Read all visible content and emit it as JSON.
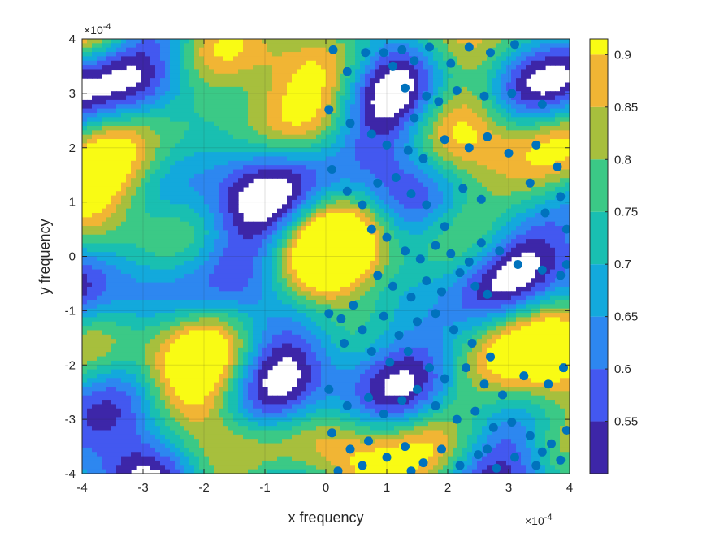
{
  "chart_data": {
    "type": "contourf-scatter",
    "xlabel": "x frequency",
    "ylabel": "y frequency",
    "x_exponent_label": "×10",
    "x_exponent_power": "-4",
    "y_exponent_label": "×10",
    "y_exponent_power": "-4",
    "xlim": [
      -4,
      4
    ],
    "ylim": [
      -4,
      4
    ],
    "x_ticks": [
      -4,
      -3,
      -2,
      -1,
      0,
      1,
      2,
      3,
      4
    ],
    "y_ticks": [
      -4,
      -3,
      -2,
      -1,
      0,
      1,
      2,
      3,
      4
    ],
    "x_tick_labels": [
      "-4",
      "-3",
      "-2",
      "-1",
      "0",
      "1",
      "2",
      "3",
      "4"
    ],
    "y_tick_labels": [
      "-4",
      "-3",
      "-2",
      "-1",
      "0",
      "1",
      "2",
      "3",
      "4"
    ],
    "grid": true,
    "colorbar": {
      "range": [
        0.5,
        0.915
      ],
      "ticks": [
        0.55,
        0.6,
        0.65,
        0.7,
        0.75,
        0.8,
        0.85,
        0.9
      ],
      "tick_labels": [
        "0.55",
        "0.6",
        "0.65",
        "0.7",
        "0.75",
        "0.8",
        "0.85",
        "0.9"
      ],
      "colormap": "parula"
    },
    "contour_levels": [
      0.5,
      0.55,
      0.6,
      0.65,
      0.7,
      0.75,
      0.8,
      0.85,
      0.9
    ],
    "level_colors": [
      "#3D26A8",
      "#4358F0",
      "#2D87F0",
      "#13A9DC",
      "#19BFB1",
      "#3BC986",
      "#A7BF3D",
      "#F1B534",
      "#F9FB14"
    ],
    "marker_color": "#0072BD",
    "scatter_points": [
      [
        0.12,
        3.8
      ],
      [
        0.35,
        3.4
      ],
      [
        0.65,
        3.75
      ],
      [
        0.95,
        3.75
      ],
      [
        1.1,
        3.5
      ],
      [
        1.25,
        3.8
      ],
      [
        1.45,
        3.6
      ],
      [
        1.7,
        3.85
      ],
      [
        2.05,
        3.55
      ],
      [
        2.35,
        3.85
      ],
      [
        2.7,
        3.75
      ],
      [
        3.1,
        3.9
      ],
      [
        1.3,
        3.1
      ],
      [
        1.65,
        2.95
      ],
      [
        1.45,
        2.55
      ],
      [
        1.85,
        2.85
      ],
      [
        2.15,
        3.05
      ],
      [
        2.6,
        2.95
      ],
      [
        3.05,
        3.0
      ],
      [
        3.55,
        2.8
      ],
      [
        0.05,
        2.7
      ],
      [
        0.4,
        2.45
      ],
      [
        0.75,
        2.25
      ],
      [
        1.0,
        2.05
      ],
      [
        1.35,
        1.95
      ],
      [
        1.6,
        1.8
      ],
      [
        1.95,
        2.15
      ],
      [
        2.35,
        2.0
      ],
      [
        2.65,
        2.2
      ],
      [
        3.0,
        1.9
      ],
      [
        3.45,
        2.05
      ],
      [
        3.8,
        1.65
      ],
      [
        0.1,
        1.6
      ],
      [
        0.35,
        1.2
      ],
      [
        0.6,
        0.95
      ],
      [
        0.85,
        1.35
      ],
      [
        1.15,
        1.45
      ],
      [
        1.4,
        1.15
      ],
      [
        1.65,
        0.95
      ],
      [
        1.95,
        0.55
      ],
      [
        2.25,
        1.25
      ],
      [
        2.55,
        1.05
      ],
      [
        3.35,
        1.35
      ],
      [
        3.6,
        0.8
      ],
      [
        3.85,
        1.1
      ],
      [
        3.95,
        0.5
      ],
      [
        0.75,
        0.5
      ],
      [
        1.0,
        0.35
      ],
      [
        1.3,
        0.1
      ],
      [
        1.55,
        -0.05
      ],
      [
        1.8,
        0.2
      ],
      [
        2.05,
        0.05
      ],
      [
        2.35,
        -0.1
      ],
      [
        2.55,
        0.25
      ],
      [
        2.85,
        0.1
      ],
      [
        3.15,
        -0.15
      ],
      [
        3.55,
        -0.25
      ],
      [
        3.85,
        -0.35
      ],
      [
        3.95,
        -0.15
      ],
      [
        0.85,
        -0.35
      ],
      [
        1.1,
        -0.55
      ],
      [
        1.4,
        -0.75
      ],
      [
        1.65,
        -0.45
      ],
      [
        1.9,
        -0.65
      ],
      [
        2.2,
        -0.3
      ],
      [
        2.45,
        -0.55
      ],
      [
        2.65,
        -0.7
      ],
      [
        0.45,
        -0.9
      ],
      [
        0.25,
        -1.15
      ],
      [
        0.05,
        -1.05
      ],
      [
        0.6,
        -1.35
      ],
      [
        0.95,
        -1.1
      ],
      [
        1.2,
        -1.45
      ],
      [
        1.5,
        -1.2
      ],
      [
        1.8,
        -1.05
      ],
      [
        2.1,
        -1.35
      ],
      [
        2.4,
        -1.6
      ],
      [
        2.7,
        -1.85
      ],
      [
        0.3,
        -1.6
      ],
      [
        0.75,
        -1.75
      ],
      [
        1.05,
        -1.95
      ],
      [
        1.35,
        -1.75
      ],
      [
        1.7,
        -2.05
      ],
      [
        1.95,
        -2.25
      ],
      [
        2.3,
        -2.05
      ],
      [
        2.6,
        -2.35
      ],
      [
        2.9,
        -2.55
      ],
      [
        3.25,
        -2.2
      ],
      [
        3.65,
        -2.35
      ],
      [
        3.9,
        -2.05
      ],
      [
        0.05,
        -2.45
      ],
      [
        0.35,
        -2.75
      ],
      [
        0.7,
        -2.6
      ],
      [
        0.95,
        -2.9
      ],
      [
        1.25,
        -2.65
      ],
      [
        1.5,
        -2.45
      ],
      [
        1.8,
        -2.75
      ],
      [
        2.15,
        -3.0
      ],
      [
        2.45,
        -2.85
      ],
      [
        2.75,
        -3.15
      ],
      [
        3.05,
        -3.05
      ],
      [
        3.35,
        -3.3
      ],
      [
        3.7,
        -3.45
      ],
      [
        3.95,
        -3.2
      ],
      [
        0.1,
        -3.25
      ],
      [
        0.4,
        -3.55
      ],
      [
        0.7,
        -3.4
      ],
      [
        1.0,
        -3.7
      ],
      [
        1.3,
        -3.5
      ],
      [
        1.6,
        -3.8
      ],
      [
        1.9,
        -3.55
      ],
      [
        2.2,
        -3.85
      ],
      [
        2.5,
        -3.65
      ],
      [
        2.8,
        -3.9
      ],
      [
        3.1,
        -3.7
      ],
      [
        3.45,
        -3.85
      ],
      [
        0.2,
        -3.95
      ],
      [
        0.6,
        -3.85
      ],
      [
        1.4,
        -3.95
      ],
      [
        2.65,
        -3.55
      ],
      [
        3.55,
        -3.6
      ],
      [
        3.85,
        -3.75
      ]
    ]
  }
}
